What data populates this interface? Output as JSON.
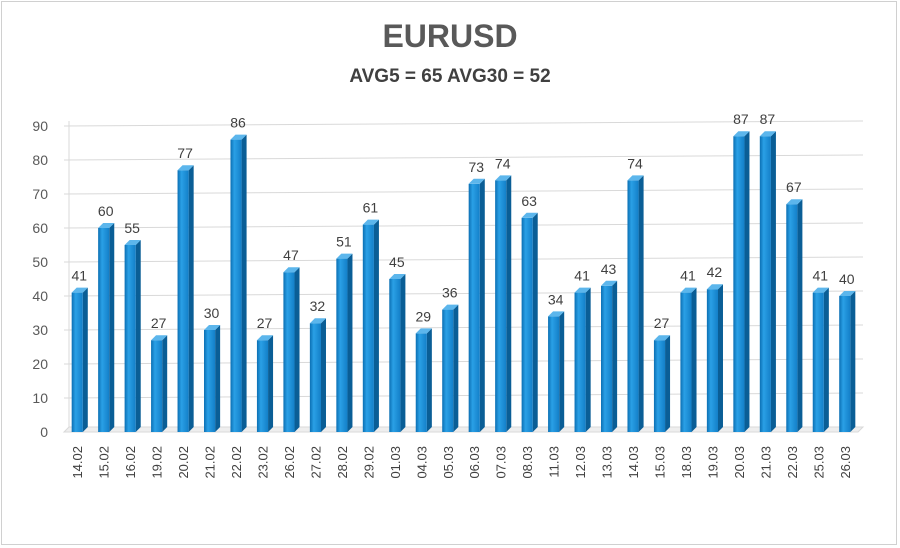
{
  "chart_data": {
    "type": "bar",
    "title": "EURUSD",
    "subtitle": "AVG5 = 65 AVG30 = 52",
    "categories": [
      "14.02",
      "15.02",
      "16.02",
      "19.02",
      "20.02",
      "21.02",
      "22.02",
      "23.02",
      "26.02",
      "27.02",
      "28.02",
      "29.02",
      "01.03",
      "04.03",
      "05.03",
      "06.03",
      "07.03",
      "08.03",
      "11.03",
      "12.03",
      "13.03",
      "14.03",
      "15.03",
      "18.03",
      "19.03",
      "20.03",
      "21.03",
      "22.03",
      "25.03",
      "26.03"
    ],
    "values": [
      41,
      60,
      55,
      27,
      77,
      30,
      86,
      27,
      47,
      32,
      51,
      61,
      45,
      29,
      36,
      73,
      74,
      63,
      34,
      41,
      43,
      74,
      27,
      41,
      42,
      87,
      87,
      67,
      41,
      40
    ],
    "ylim": [
      0,
      90
    ],
    "yticks": [
      0,
      10,
      20,
      30,
      40,
      50,
      60,
      70,
      80,
      90
    ],
    "grid": true,
    "data_labels": true,
    "colors": {
      "bar": "#1a8fd6",
      "bar_dark": "#0a5e96",
      "bar_light": "#5cb6ec",
      "grid": "#d9d9d9"
    }
  }
}
